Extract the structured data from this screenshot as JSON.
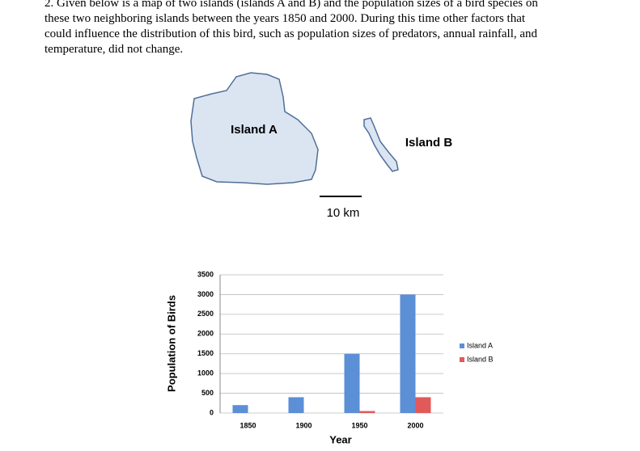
{
  "question": {
    "lines": [
      "2.  Given below is a map of two islands (islands A and B) and the population sizes of a bird species on",
      "these two neighboring islands between the years 1850 and 2000.  During this time other factors that",
      "could influence the distribution of this bird, such as population sizes of predators, annual rainfall, and",
      "temperature, did not change."
    ]
  },
  "map": {
    "island_a": "Island A",
    "island_b": "Island B",
    "scale": "10 km"
  },
  "chart_data": {
    "type": "bar",
    "x_label": "Year",
    "y_label": "Population of Birds",
    "categories": [
      "1850",
      "1900",
      "1950",
      "2000"
    ],
    "series": [
      {
        "name": "Island A",
        "color": "#5b8fd6",
        "values": [
          200,
          400,
          1500,
          3000
        ]
      },
      {
        "name": "Island B",
        "color": "#e05a5a",
        "values": [
          0,
          0,
          50,
          400
        ]
      }
    ],
    "ylim": [
      0,
      3500
    ],
    "yticks": [
      0,
      500,
      1000,
      1500,
      2000,
      2500,
      3000,
      3500
    ],
    "grid": true,
    "legend": "right"
  }
}
